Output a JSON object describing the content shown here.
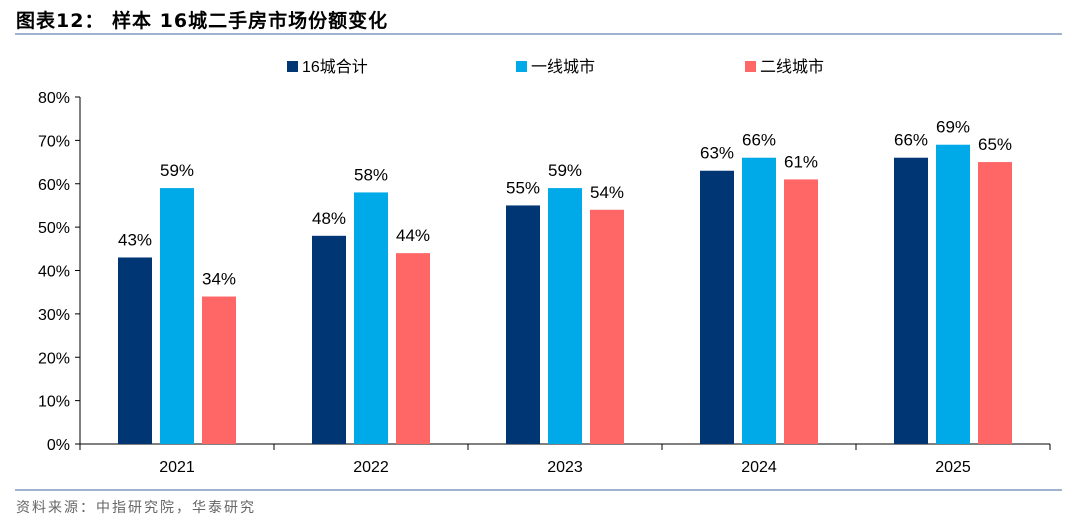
{
  "title": "图表12：  样本 16城二手房市场份额变化",
  "source": "资料来源：中指研究院，华泰研究",
  "chart_data": {
    "type": "bar",
    "categories": [
      "2021",
      "2022",
      "2023",
      "2024",
      "2025"
    ],
    "series": [
      {
        "name": "16城合计",
        "color": "#003673",
        "values": [
          43,
          48,
          55,
          63,
          66
        ]
      },
      {
        "name": "一线城市",
        "color": "#00a9e8",
        "values": [
          59,
          58,
          59,
          66,
          69
        ]
      },
      {
        "name": "二线城市",
        "color": "#ff6666",
        "values": [
          34,
          44,
          54,
          61,
          65
        ]
      }
    ],
    "ylim": [
      0,
      80
    ],
    "yticks": [
      "0%",
      "10%",
      "20%",
      "30%",
      "40%",
      "50%",
      "60%",
      "70%",
      "80%"
    ],
    "value_format": "percent",
    "legend": "top",
    "grid": false
  }
}
